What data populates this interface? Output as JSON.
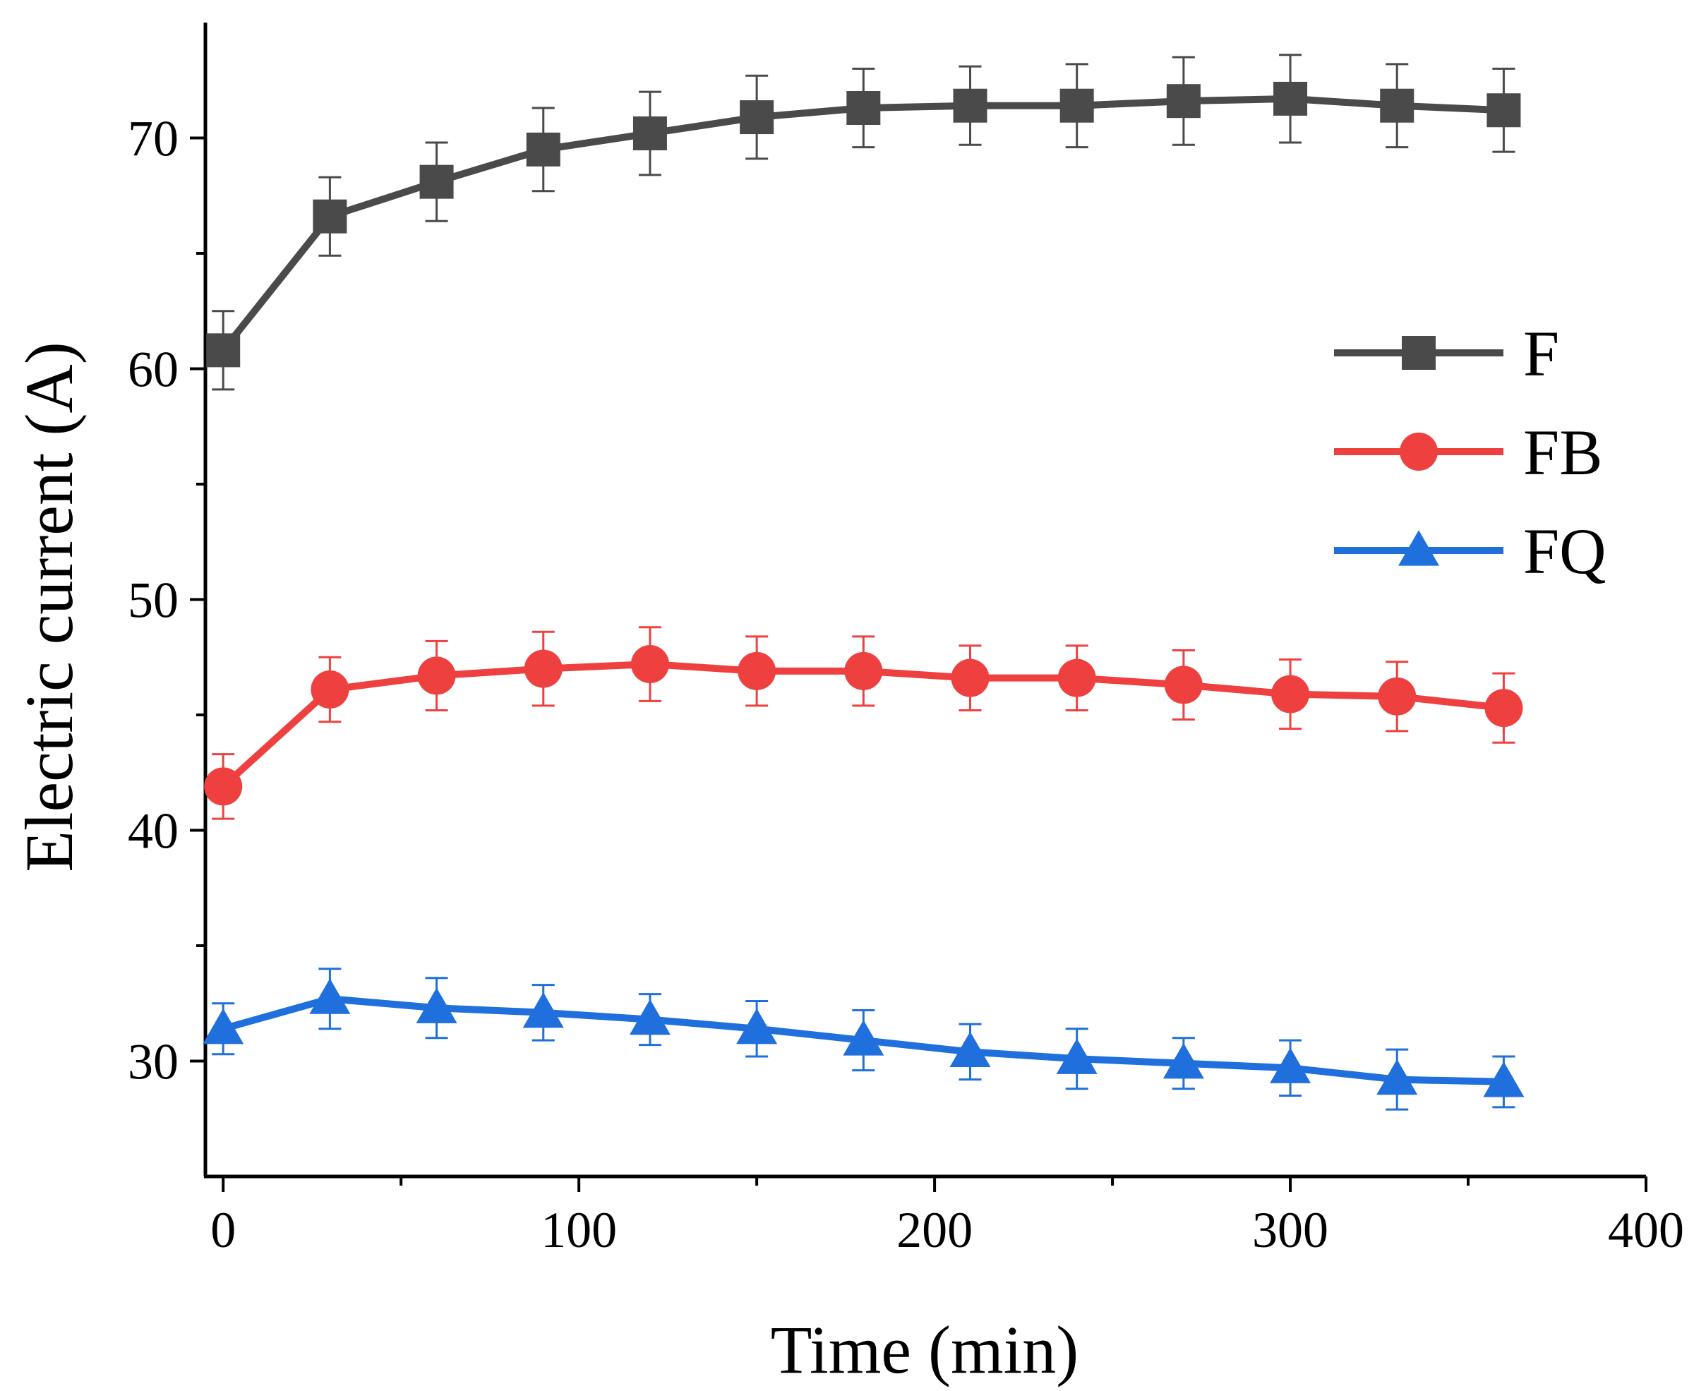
{
  "chart_data": {
    "type": "line",
    "title": "",
    "xlabel": "Time (min)",
    "ylabel": "Electric current (A)",
    "xlim": [
      -5,
      400
    ],
    "ylim": [
      25,
      75
    ],
    "x_ticks": [
      0,
      100,
      200,
      300,
      400
    ],
    "x_tick_labels": [
      "0",
      "100",
      "200",
      "300",
      "400"
    ],
    "y_ticks": [
      30,
      40,
      50,
      60,
      70
    ],
    "y_tick_labels": [
      "30",
      "40",
      "50",
      "60",
      "70"
    ],
    "x_minor_ticks": [
      50,
      150,
      250,
      350
    ],
    "y_minor_ticks": [
      35,
      45,
      55,
      65
    ],
    "legend_position": "right",
    "x": [
      0,
      30,
      60,
      90,
      120,
      150,
      180,
      210,
      240,
      270,
      300,
      330,
      360
    ],
    "series": [
      {
        "name": "F",
        "marker": "square",
        "color": "#4a4a4a",
        "values": [
          60.8,
          66.6,
          68.1,
          69.5,
          70.2,
          70.9,
          71.3,
          71.4,
          71.4,
          71.6,
          71.7,
          71.4,
          71.2
        ],
        "errors": [
          1.7,
          1.7,
          1.7,
          1.8,
          1.8,
          1.8,
          1.7,
          1.7,
          1.8,
          1.9,
          1.9,
          1.8,
          1.8
        ]
      },
      {
        "name": "FB",
        "marker": "circle",
        "color": "#ef4040",
        "values": [
          41.9,
          46.1,
          46.7,
          47.0,
          47.2,
          46.9,
          46.9,
          46.6,
          46.6,
          46.3,
          45.9,
          45.8,
          45.3
        ],
        "errors": [
          1.4,
          1.4,
          1.5,
          1.6,
          1.6,
          1.5,
          1.5,
          1.4,
          1.4,
          1.5,
          1.5,
          1.5,
          1.5
        ]
      },
      {
        "name": "FQ",
        "marker": "triangle",
        "color": "#1f6fdc",
        "values": [
          31.4,
          32.7,
          32.3,
          32.1,
          31.8,
          31.4,
          30.9,
          30.4,
          30.1,
          29.9,
          29.7,
          29.2,
          29.1
        ],
        "errors": [
          1.1,
          1.3,
          1.3,
          1.2,
          1.1,
          1.2,
          1.3,
          1.2,
          1.3,
          1.1,
          1.2,
          1.3,
          1.1
        ]
      }
    ]
  }
}
